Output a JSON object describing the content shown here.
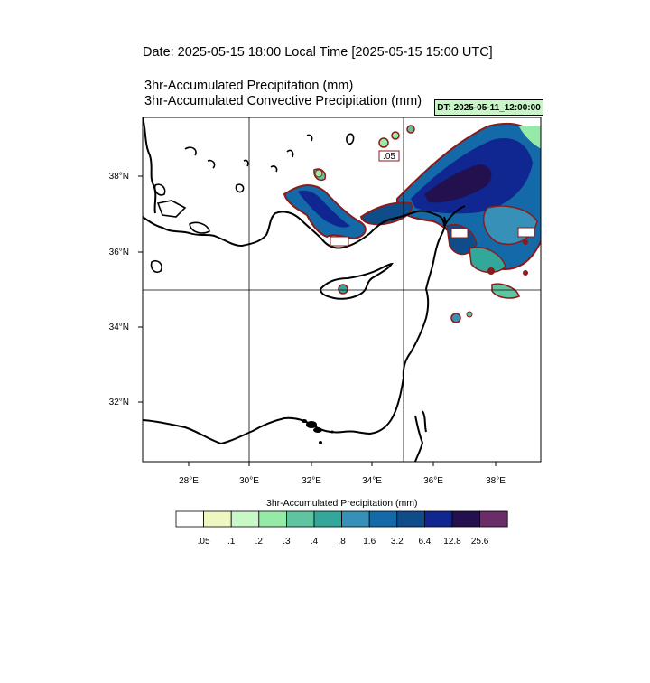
{
  "header": {
    "date_line": "Date: 2025-05-15  18:00 Local Time [2025-05-15  15:00 UTC]",
    "title_line1": "3hr-Accumulated Precipitation   (mm)",
    "title_line2": "3hr-Accumulated Convective Precipitation   (mm)",
    "dt_badge": "DT: 2025-05-11_12:00:00",
    "dt_badge_color": "#c9f5c9"
  },
  "map": {
    "lon_labels": [
      "28°E",
      "30°E",
      "32°E",
      "34°E",
      "36°E",
      "38°E"
    ],
    "lat_labels": [
      "38°N",
      "36°N",
      "34°N",
      "32°N"
    ],
    "contour_label": ".05"
  },
  "colorbar": {
    "title": "3hr-Accumulated Precipitation   (mm)",
    "labels": [
      ".05",
      ".1",
      ".2",
      ".3",
      ".4",
      ".8",
      "1.6",
      "3.2",
      "6.4",
      "12.8",
      "25.6"
    ],
    "colors": [
      "#ffffff",
      "#eef7c0",
      "#c8f7c8",
      "#96eaa8",
      "#5ec5a0",
      "#33a89a",
      "#3690b8",
      "#1469a8",
      "#0f4d8a",
      "#102690",
      "#23104e",
      "#6a2d68"
    ]
  }
}
